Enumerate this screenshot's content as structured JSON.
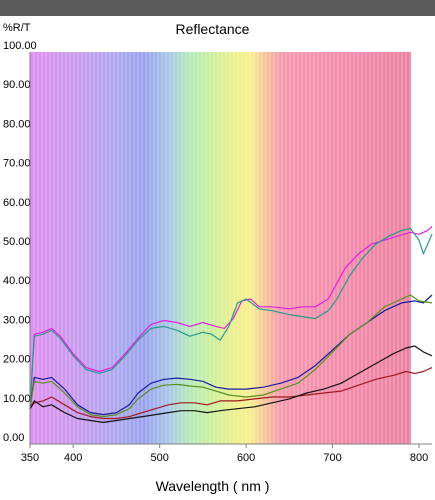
{
  "chart_data": {
    "type": "line",
    "title": "Reflectance",
    "ylabel": "%R/T",
    "xlabel": "Wavelength ( nm )",
    "xlim": [
      350,
      815
    ],
    "ylim": [
      0,
      100
    ],
    "x_ticks": [
      350,
      400,
      500,
      600,
      700,
      800
    ],
    "y_ticks": [
      "0.00",
      "10.00",
      "20.00",
      "30.00",
      "40.00",
      "50.00",
      "60.00",
      "70.00",
      "80.00",
      "90.00",
      "100.00"
    ],
    "grid": "vertical-bands",
    "legend": "none",
    "series": [
      {
        "color": "#e020e0",
        "x": [
          350,
          355,
          365,
          375,
          385,
          400,
          415,
          430,
          445,
          460,
          475,
          490,
          505,
          520,
          535,
          550,
          565,
          575,
          585,
          595,
          605,
          615,
          630,
          650,
          665,
          680,
          695,
          705,
          715,
          730,
          745,
          760,
          775,
          790,
          800,
          810,
          815
        ],
        "y": [
          9,
          28,
          28.5,
          29.5,
          27.5,
          23,
          19.5,
          18.5,
          19.5,
          23,
          27,
          30.5,
          31.5,
          31,
          30,
          31,
          30,
          29.5,
          32,
          36.5,
          37,
          35,
          35,
          34.5,
          35,
          35,
          37,
          41,
          45,
          48.5,
          51,
          52,
          53,
          54,
          53.5,
          54.5,
          55.5
        ]
      },
      {
        "color": "#2a9a8a",
        "x": [
          350,
          355,
          365,
          375,
          385,
          400,
          415,
          430,
          445,
          460,
          475,
          490,
          505,
          520,
          535,
          550,
          560,
          570,
          580,
          590,
          600,
          615,
          630,
          650,
          665,
          680,
          695,
          705,
          720,
          735,
          750,
          765,
          780,
          790,
          800,
          805,
          815
        ],
        "y": [
          9,
          27.5,
          28,
          29,
          27,
          22.5,
          19,
          18,
          19,
          22.5,
          26.5,
          29.5,
          30,
          29,
          27.5,
          28.5,
          28,
          26.5,
          30,
          36,
          37,
          34.5,
          34,
          33,
          32.5,
          32,
          34,
          37,
          43,
          47.5,
          51,
          53,
          54.5,
          55,
          52,
          48.5,
          53.5
        ]
      },
      {
        "color": "#1a1aa0",
        "x": [
          350,
          355,
          365,
          375,
          390,
          405,
          420,
          435,
          450,
          465,
          475,
          490,
          505,
          520,
          535,
          550,
          565,
          580,
          600,
          620,
          640,
          660,
          680,
          700,
          720,
          740,
          760,
          780,
          795,
          805,
          815
        ],
        "y": [
          9,
          17,
          16.5,
          17,
          14,
          10,
          8,
          7.5,
          8,
          10,
          13,
          15.5,
          16.5,
          16.8,
          16.5,
          16,
          14.5,
          14,
          14,
          14.5,
          15.5,
          17,
          20,
          24,
          28,
          31,
          34,
          36,
          36.5,
          36,
          38
        ]
      },
      {
        "color": "#5a9020",
        "x": [
          350,
          355,
          365,
          375,
          390,
          405,
          420,
          435,
          450,
          465,
          475,
          490,
          505,
          520,
          535,
          550,
          565,
          580,
          600,
          620,
          640,
          660,
          680,
          700,
          720,
          740,
          760,
          780,
          790,
          800,
          815
        ],
        "y": [
          9,
          16,
          15.5,
          16,
          13,
          9.5,
          7.5,
          7,
          7.5,
          9,
          11.5,
          14,
          15,
          15.2,
          14.8,
          14.5,
          13.5,
          12.5,
          12,
          12.5,
          14,
          15.5,
          19,
          23.5,
          28,
          31,
          35,
          37,
          38,
          36.5,
          36
        ]
      },
      {
        "color": "#a01820",
        "x": [
          350,
          355,
          365,
          375,
          390,
          405,
          420,
          435,
          450,
          465,
          480,
          495,
          510,
          525,
          540,
          555,
          570,
          590,
          610,
          630,
          650,
          670,
          690,
          710,
          730,
          750,
          770,
          785,
          795,
          805,
          815
        ],
        "y": [
          9,
          10.5,
          11,
          12,
          10,
          8,
          7,
          6.5,
          6.5,
          7,
          8,
          9,
          10,
          10.5,
          10.5,
          10,
          11,
          11,
          11.5,
          12,
          12,
          12.5,
          13,
          13.5,
          15,
          16.5,
          17.5,
          18.5,
          18,
          18.5,
          19.5
        ]
      },
      {
        "color": "#141414",
        "x": [
          350,
          355,
          365,
          375,
          390,
          405,
          420,
          435,
          450,
          465,
          480,
          495,
          510,
          525,
          540,
          555,
          570,
          590,
          610,
          630,
          650,
          670,
          690,
          710,
          730,
          750,
          770,
          785,
          795,
          805,
          815
        ],
        "y": [
          9,
          11,
          9.5,
          10,
          8,
          6.5,
          6,
          5.5,
          6,
          6.5,
          7,
          7.5,
          8,
          8.5,
          8.5,
          8,
          8.5,
          9,
          9.5,
          10.5,
          11.5,
          13,
          14,
          15.5,
          18,
          20.5,
          23,
          24.5,
          25,
          23.5,
          22.5
        ]
      }
    ]
  }
}
